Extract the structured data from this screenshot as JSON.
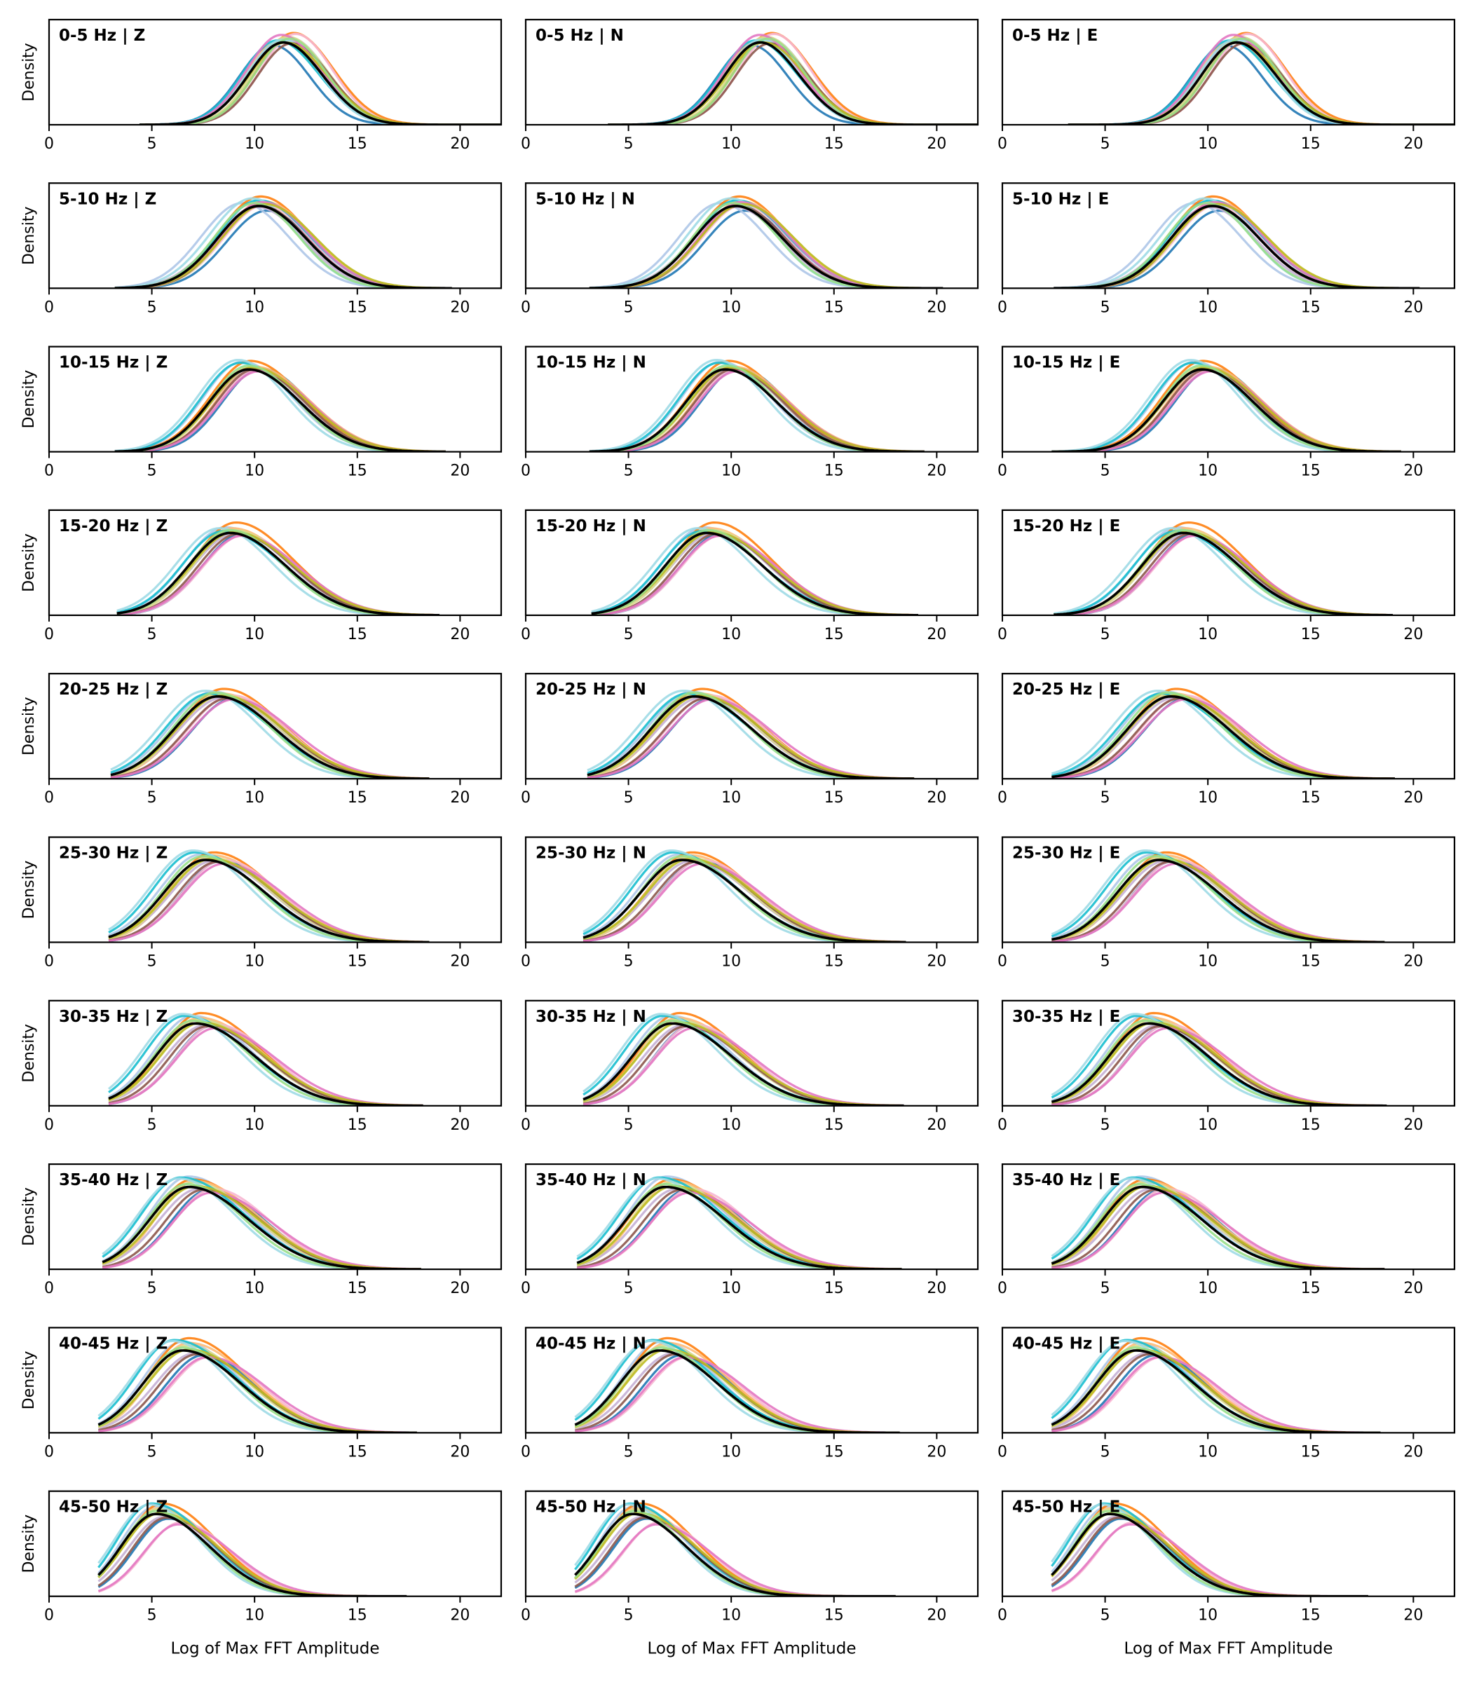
{
  "chart_data": {
    "type": "line",
    "description_grid": "10 frequency bands x 3 components, kernel density curves of log of max FFT amplitude",
    "bands": [
      "0-5 Hz",
      "5-10 Hz",
      "10-15 Hz",
      "15-20 Hz",
      "20-25 Hz",
      "25-30 Hz",
      "30-35 Hz",
      "35-40 Hz",
      "40-45 Hz",
      "45-50 Hz"
    ],
    "components": [
      "Z",
      "N",
      "E"
    ],
    "separator": " | ",
    "ylabel": "Density",
    "xlabel": "Log of Max FFT Amplitude",
    "xlim": [
      0,
      22
    ],
    "ylim": [
      0,
      1
    ],
    "xticks": [
      0,
      5,
      10,
      15,
      20
    ],
    "xtick_labels": [
      "0",
      "5",
      "10",
      "15",
      "20"
    ],
    "series_colors": [
      "#1f77b4",
      "#aec7e8",
      "#ff7f0e",
      "#ffbb78",
      "#f7b6d2",
      "#c5b0d5",
      "#dbdb8d",
      "#17becf",
      "#9edae5",
      "#8c564b",
      "#e377c2",
      "#bcbd22",
      "#98df8a"
    ],
    "mean_color": "#000000",
    "band_params": [
      {
        "band": "0-5 Hz",
        "peak": 11.4,
        "sl": 1.7,
        "sr": 1.9,
        "xmin": [
          4.4,
          4.0,
          3.2
        ],
        "xmax": [
          22.0,
          22.0,
          22.0
        ],
        "offsets": [
          -0.5,
          0.3,
          0.5,
          -0.2,
          0.6,
          0.1,
          0.2,
          -0.3,
          0.0,
          0.4,
          -0.1,
          0.1,
          0.3
        ],
        "amps": [
          0.84,
          0.92,
          0.97,
          0.88,
          0.96,
          0.9,
          0.93,
          0.89,
          0.9,
          0.86,
          0.95,
          0.87,
          0.91
        ]
      },
      {
        "band": "5-10 Hz",
        "peak": 10.2,
        "sl": 2.0,
        "sr": 2.3,
        "xmin": [
          3.2,
          3.1,
          2.5
        ],
        "xmax": [
          19.6,
          20.3,
          20.3
        ],
        "offsets": [
          0.4,
          -0.8,
          0.1,
          0.2,
          0.3,
          -0.1,
          0.2,
          0.0,
          -0.3,
          0.1,
          0.2,
          0.3,
          -0.2
        ],
        "amps": [
          0.82,
          0.9,
          0.97,
          0.92,
          0.88,
          0.86,
          0.9,
          0.93,
          0.95,
          0.87,
          0.91,
          0.89,
          0.9
        ]
      },
      {
        "band": "10-15 Hz",
        "peak": 9.7,
        "sl": 1.9,
        "sr": 2.5,
        "xmin": [
          3.2,
          3.1,
          2.4
        ],
        "xmax": [
          19.3,
          19.4,
          19.4
        ],
        "offsets": [
          0.6,
          -0.3,
          0.1,
          0.3,
          0.4,
          0.2,
          0.1,
          -0.4,
          -0.5,
          0.3,
          0.5,
          0.2,
          0.0
        ],
        "amps": [
          0.88,
          0.95,
          0.96,
          0.9,
          0.86,
          0.88,
          0.9,
          0.94,
          0.97,
          0.87,
          0.85,
          0.89,
          0.91
        ]
      },
      {
        "band": "15-20 Hz",
        "peak": 8.8,
        "sl": 2.0,
        "sr": 2.7,
        "xmin": [
          3.3,
          3.2,
          2.5
        ],
        "xmax": [
          19.0,
          19.1,
          19.0
        ],
        "offsets": [
          0.6,
          -0.2,
          0.3,
          0.1,
          0.7,
          0.3,
          0.2,
          -0.3,
          -0.5,
          0.4,
          0.6,
          0.2,
          0.0
        ],
        "amps": [
          0.86,
          0.93,
          0.98,
          0.92,
          0.85,
          0.87,
          0.9,
          0.89,
          0.92,
          0.86,
          0.84,
          0.88,
          0.9
        ]
      },
      {
        "band": "20-25 Hz",
        "peak": 8.2,
        "sl": 2.1,
        "sr": 2.8,
        "xmin": [
          3.0,
          3.0,
          2.4
        ],
        "xmax": [
          18.5,
          18.9,
          19.1
        ],
        "offsets": [
          0.8,
          -0.2,
          0.3,
          0.2,
          0.7,
          0.3,
          0.1,
          -0.4,
          -0.6,
          0.5,
          0.8,
          0.2,
          -0.1
        ],
        "amps": [
          0.85,
          0.92,
          0.95,
          0.9,
          0.88,
          0.86,
          0.9,
          0.9,
          0.93,
          0.85,
          0.84,
          0.88,
          0.91
        ]
      },
      {
        "band": "25-30 Hz",
        "peak": 7.6,
        "sl": 2.0,
        "sr": 2.9,
        "xmin": [
          2.9,
          2.8,
          2.4
        ],
        "xmax": [
          18.5,
          18.5,
          18.6
        ],
        "offsets": [
          0.8,
          -0.2,
          0.4,
          0.3,
          0.9,
          0.4,
          0.2,
          -0.5,
          -0.6,
          0.6,
          0.9,
          0.3,
          -0.1
        ],
        "amps": [
          0.86,
          0.93,
          0.95,
          0.92,
          0.87,
          0.86,
          0.9,
          0.95,
          0.97,
          0.85,
          0.83,
          0.88,
          0.91
        ]
      },
      {
        "band": "30-35 Hz",
        "peak": 7.1,
        "sl": 1.9,
        "sr": 2.9,
        "xmin": [
          2.9,
          2.8,
          2.4
        ],
        "xmax": [
          18.2,
          18.4,
          18.7
        ],
        "offsets": [
          0.9,
          -0.1,
          0.3,
          0.2,
          1.0,
          0.5,
          0.2,
          -0.5,
          -0.6,
          0.6,
          1.0,
          0.3,
          -0.1
        ],
        "amps": [
          0.85,
          0.95,
          0.98,
          0.93,
          0.86,
          0.85,
          0.91,
          0.95,
          0.97,
          0.84,
          0.82,
          0.88,
          0.9
        ]
      },
      {
        "band": "35-40 Hz",
        "peak": 6.8,
        "sl": 1.9,
        "sr": 2.9,
        "xmin": [
          2.6,
          2.5,
          2.4
        ],
        "xmax": [
          18.1,
          18.3,
          18.6
        ],
        "offsets": [
          1.0,
          0.0,
          0.2,
          0.3,
          1.2,
          0.5,
          0.2,
          -0.4,
          -0.5,
          0.7,
          1.1,
          0.3,
          -0.1
        ],
        "amps": [
          0.84,
          0.98,
          0.95,
          0.93,
          0.85,
          0.85,
          0.92,
          0.97,
          0.96,
          0.84,
          0.81,
          0.88,
          0.9
        ]
      },
      {
        "band": "40-45 Hz",
        "peak": 6.5,
        "sl": 1.9,
        "sr": 2.8,
        "xmin": [
          2.4,
          2.4,
          2.4
        ],
        "xmax": [
          17.9,
          18.2,
          18.4
        ],
        "offsets": [
          1.0,
          0.0,
          0.3,
          0.3,
          1.3,
          0.6,
          0.2,
          -0.4,
          -0.5,
          0.7,
          1.2,
          0.3,
          0.0
        ],
        "amps": [
          0.82,
          0.96,
          1.0,
          0.95,
          0.8,
          0.84,
          0.92,
          0.98,
          0.97,
          0.83,
          0.8,
          0.88,
          0.9
        ]
      },
      {
        "band": "45-50 Hz",
        "peak": 5.2,
        "sl": 1.7,
        "sr": 2.6,
        "xmin": [
          2.4,
          2.4,
          2.4
        ],
        "xmax": [
          17.4,
          18.0,
          17.8
        ],
        "offsets": [
          0.6,
          0.0,
          0.3,
          0.1,
          1.2,
          0.4,
          0.1,
          -0.2,
          -0.3,
          0.5,
          1.1,
          0.2,
          0.0
        ],
        "amps": [
          0.82,
          0.95,
          0.98,
          0.93,
          0.78,
          0.84,
          0.92,
          0.98,
          0.97,
          0.83,
          0.76,
          0.88,
          0.9
        ]
      }
    ]
  }
}
